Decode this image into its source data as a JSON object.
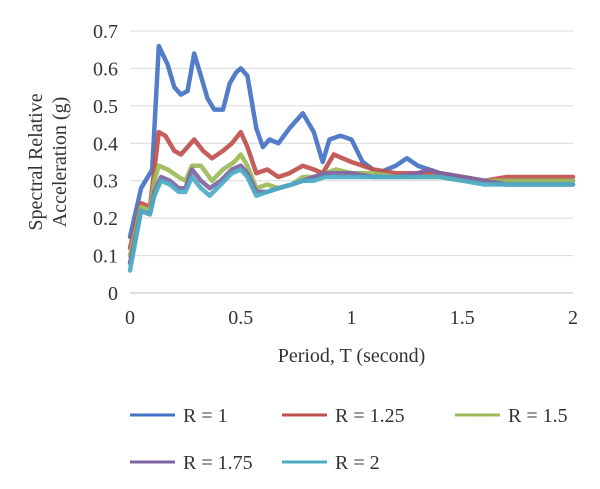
{
  "chart_data": {
    "type": "line",
    "title": "",
    "xlabel": "Period, T (second)",
    "ylabel": "Spectral Relative Acceleration (g)",
    "ylabel_lines": [
      "Spectral Relative",
      "Acceleration (g)"
    ],
    "xlim": [
      0,
      2
    ],
    "ylim": [
      0,
      0.7
    ],
    "x_ticks": [
      0,
      0.5,
      1,
      1.5,
      2
    ],
    "x_tick_labels": [
      "0",
      "0.5",
      "1",
      "1.5",
      "2"
    ],
    "y_ticks": [
      0,
      0.1,
      0.2,
      0.3,
      0.4,
      0.5,
      0.6,
      0.7
    ],
    "y_tick_labels": [
      "0",
      "0.1",
      "0.2",
      "0.3",
      "0.4",
      "0.5",
      "0.6",
      "0.7"
    ],
    "grid": "horizontal",
    "legend_position": "bottom",
    "series": [
      {
        "name": "R = 1",
        "color": "#4472C4",
        "points": [
          [
            0,
            0.15
          ],
          [
            0.05,
            0.28
          ],
          [
            0.1,
            0.33
          ],
          [
            0.13,
            0.66
          ],
          [
            0.17,
            0.61
          ],
          [
            0.2,
            0.55
          ],
          [
            0.23,
            0.53
          ],
          [
            0.26,
            0.54
          ],
          [
            0.29,
            0.64
          ],
          [
            0.32,
            0.58
          ],
          [
            0.35,
            0.52
          ],
          [
            0.38,
            0.49
          ],
          [
            0.42,
            0.49
          ],
          [
            0.45,
            0.56
          ],
          [
            0.48,
            0.59
          ],
          [
            0.5,
            0.6
          ],
          [
            0.53,
            0.58
          ],
          [
            0.57,
            0.44
          ],
          [
            0.6,
            0.39
          ],
          [
            0.63,
            0.41
          ],
          [
            0.67,
            0.4
          ],
          [
            0.72,
            0.44
          ],
          [
            0.78,
            0.48
          ],
          [
            0.83,
            0.43
          ],
          [
            0.87,
            0.35
          ],
          [
            0.9,
            0.41
          ],
          [
            0.95,
            0.42
          ],
          [
            1.0,
            0.41
          ],
          [
            1.05,
            0.35
          ],
          [
            1.12,
            0.32
          ],
          [
            1.2,
            0.34
          ],
          [
            1.25,
            0.36
          ],
          [
            1.3,
            0.34
          ],
          [
            1.4,
            0.32
          ],
          [
            1.5,
            0.31
          ],
          [
            1.6,
            0.3
          ],
          [
            1.7,
            0.3
          ],
          [
            1.8,
            0.3
          ],
          [
            1.9,
            0.3
          ],
          [
            2.0,
            0.3
          ]
        ]
      },
      {
        "name": "R = 1.25",
        "color": "#C0504D",
        "points": [
          [
            0,
            0.12
          ],
          [
            0.05,
            0.24
          ],
          [
            0.09,
            0.23
          ],
          [
            0.11,
            0.33
          ],
          [
            0.13,
            0.43
          ],
          [
            0.16,
            0.42
          ],
          [
            0.2,
            0.38
          ],
          [
            0.23,
            0.37
          ],
          [
            0.26,
            0.39
          ],
          [
            0.29,
            0.41
          ],
          [
            0.33,
            0.38
          ],
          [
            0.37,
            0.36
          ],
          [
            0.42,
            0.38
          ],
          [
            0.46,
            0.4
          ],
          [
            0.5,
            0.43
          ],
          [
            0.53,
            0.39
          ],
          [
            0.57,
            0.32
          ],
          [
            0.62,
            0.33
          ],
          [
            0.67,
            0.31
          ],
          [
            0.72,
            0.32
          ],
          [
            0.78,
            0.34
          ],
          [
            0.83,
            0.33
          ],
          [
            0.87,
            0.32
          ],
          [
            0.92,
            0.37
          ],
          [
            0.96,
            0.36
          ],
          [
            1.0,
            0.35
          ],
          [
            1.05,
            0.34
          ],
          [
            1.1,
            0.33
          ],
          [
            1.2,
            0.32
          ],
          [
            1.3,
            0.32
          ],
          [
            1.4,
            0.32
          ],
          [
            1.5,
            0.31
          ],
          [
            1.6,
            0.3
          ],
          [
            1.7,
            0.31
          ],
          [
            1.8,
            0.31
          ],
          [
            1.9,
            0.31
          ],
          [
            2.0,
            0.31
          ]
        ]
      },
      {
        "name": "R = 1.5",
        "color": "#9BBB59",
        "points": [
          [
            0,
            0.1
          ],
          [
            0.05,
            0.23
          ],
          [
            0.09,
            0.22
          ],
          [
            0.11,
            0.3
          ],
          [
            0.13,
            0.34
          ],
          [
            0.17,
            0.33
          ],
          [
            0.22,
            0.31
          ],
          [
            0.25,
            0.3
          ],
          [
            0.28,
            0.34
          ],
          [
            0.32,
            0.34
          ],
          [
            0.37,
            0.3
          ],
          [
            0.42,
            0.33
          ],
          [
            0.47,
            0.35
          ],
          [
            0.5,
            0.37
          ],
          [
            0.53,
            0.34
          ],
          [
            0.57,
            0.28
          ],
          [
            0.62,
            0.29
          ],
          [
            0.67,
            0.28
          ],
          [
            0.73,
            0.29
          ],
          [
            0.78,
            0.31
          ],
          [
            0.83,
            0.31
          ],
          [
            0.88,
            0.32
          ],
          [
            0.93,
            0.33
          ],
          [
            1.0,
            0.32
          ],
          [
            1.1,
            0.32
          ],
          [
            1.2,
            0.31
          ],
          [
            1.3,
            0.31
          ],
          [
            1.4,
            0.31
          ],
          [
            1.5,
            0.3
          ],
          [
            1.6,
            0.3
          ],
          [
            1.7,
            0.3
          ],
          [
            1.8,
            0.3
          ],
          [
            1.9,
            0.3
          ],
          [
            2.0,
            0.3
          ]
        ]
      },
      {
        "name": "R = 1.75",
        "color": "#8064A2",
        "points": [
          [
            0,
            0.08
          ],
          [
            0.05,
            0.22
          ],
          [
            0.09,
            0.21
          ],
          [
            0.11,
            0.27
          ],
          [
            0.14,
            0.31
          ],
          [
            0.18,
            0.3
          ],
          [
            0.22,
            0.28
          ],
          [
            0.25,
            0.28
          ],
          [
            0.28,
            0.33
          ],
          [
            0.32,
            0.3
          ],
          [
            0.36,
            0.28
          ],
          [
            0.41,
            0.3
          ],
          [
            0.46,
            0.33
          ],
          [
            0.5,
            0.34
          ],
          [
            0.53,
            0.32
          ],
          [
            0.57,
            0.27
          ],
          [
            0.62,
            0.27
          ],
          [
            0.67,
            0.28
          ],
          [
            0.73,
            0.29
          ],
          [
            0.78,
            0.3
          ],
          [
            0.83,
            0.31
          ],
          [
            0.88,
            0.32
          ],
          [
            0.93,
            0.32
          ],
          [
            1.0,
            0.32
          ],
          [
            1.1,
            0.31
          ],
          [
            1.2,
            0.31
          ],
          [
            1.3,
            0.32
          ],
          [
            1.35,
            0.33
          ],
          [
            1.4,
            0.32
          ],
          [
            1.5,
            0.31
          ],
          [
            1.6,
            0.3
          ],
          [
            1.7,
            0.29
          ],
          [
            1.8,
            0.29
          ],
          [
            1.9,
            0.29
          ],
          [
            2.0,
            0.29
          ]
        ]
      },
      {
        "name": "R = 2",
        "color": "#4BACC6",
        "points": [
          [
            0,
            0.06
          ],
          [
            0.05,
            0.22
          ],
          [
            0.09,
            0.21
          ],
          [
            0.11,
            0.26
          ],
          [
            0.14,
            0.3
          ],
          [
            0.18,
            0.29
          ],
          [
            0.22,
            0.27
          ],
          [
            0.25,
            0.27
          ],
          [
            0.28,
            0.31
          ],
          [
            0.32,
            0.28
          ],
          [
            0.36,
            0.26
          ],
          [
            0.41,
            0.29
          ],
          [
            0.46,
            0.32
          ],
          [
            0.5,
            0.33
          ],
          [
            0.53,
            0.31
          ],
          [
            0.57,
            0.26
          ],
          [
            0.62,
            0.27
          ],
          [
            0.67,
            0.28
          ],
          [
            0.73,
            0.29
          ],
          [
            0.78,
            0.3
          ],
          [
            0.83,
            0.3
          ],
          [
            0.88,
            0.31
          ],
          [
            0.93,
            0.31
          ],
          [
            1.0,
            0.31
          ],
          [
            1.1,
            0.31
          ],
          [
            1.2,
            0.31
          ],
          [
            1.3,
            0.31
          ],
          [
            1.4,
            0.31
          ],
          [
            1.5,
            0.3
          ],
          [
            1.6,
            0.29
          ],
          [
            1.7,
            0.29
          ],
          [
            1.8,
            0.29
          ],
          [
            1.9,
            0.29
          ],
          [
            2.0,
            0.29
          ]
        ]
      }
    ]
  }
}
